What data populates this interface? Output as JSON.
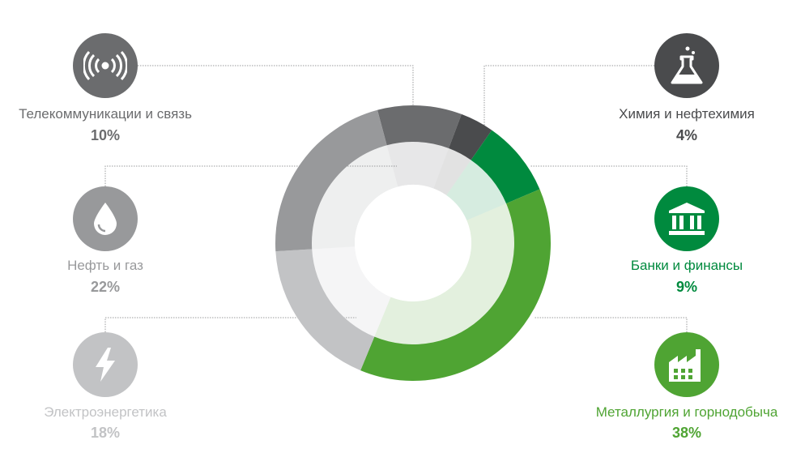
{
  "chart_data": {
    "type": "donut",
    "slices": [
      {
        "label": "Телекоммуникации и связь",
        "percent_label": "10%",
        "value": 10,
        "color": "#6b6c6e",
        "icon": "wireless-signal-icon"
      },
      {
        "label": "Химия и нефтехимия",
        "percent_label": "4%",
        "value": 4,
        "color": "#4a4b4d",
        "icon": "flask-icon"
      },
      {
        "label": "Банки и финансы",
        "percent_label": "9%",
        "value": 9,
        "color": "#008a3e",
        "icon": "bank-building-icon"
      },
      {
        "label": "Металлургия и горнодобыча",
        "percent_label": "38%",
        "value": 38,
        "color": "#4fa433",
        "icon": "factory-icon"
      },
      {
        "label": "Электроэнергетика",
        "percent_label": "18%",
        "value": 18,
        "color": "#c2c3c5",
        "icon": "lightning-icon"
      },
      {
        "label": "Нефть и газ",
        "percent_label": "22%",
        "value": 22,
        "color": "#98999b",
        "icon": "oil-drop-icon"
      }
    ]
  }
}
